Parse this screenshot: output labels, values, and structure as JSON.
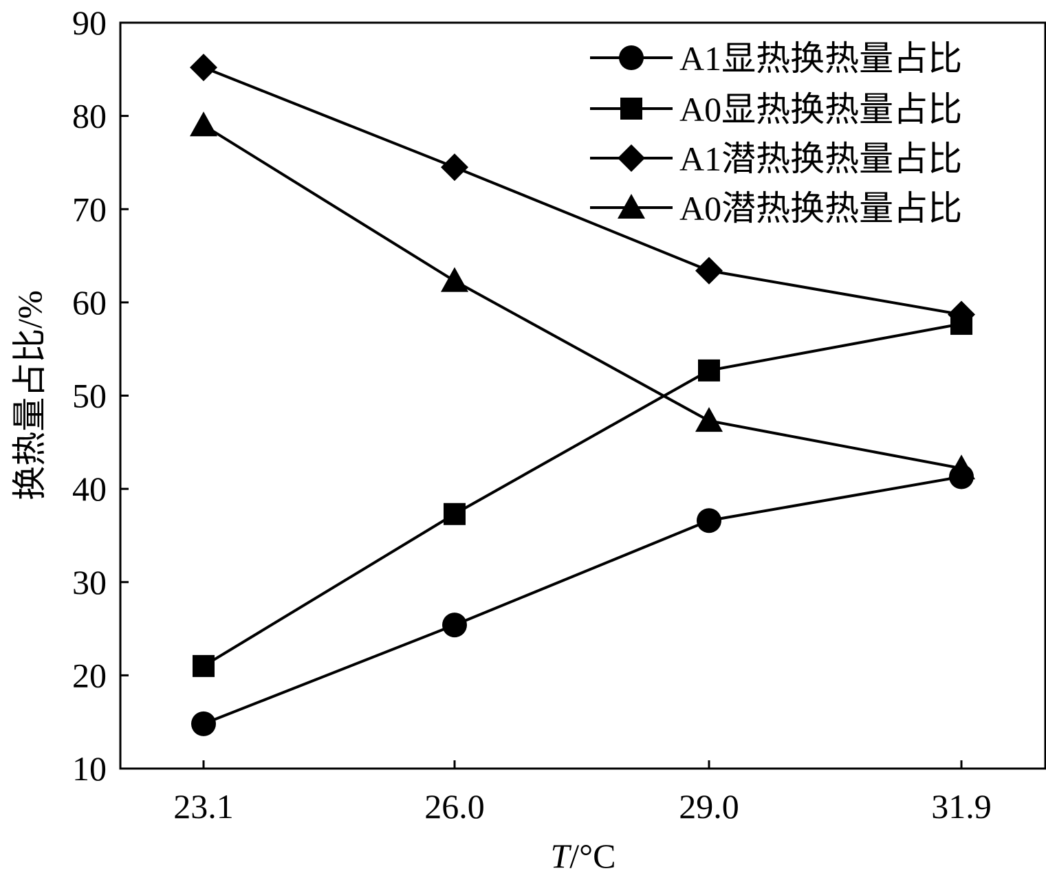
{
  "chart_data": {
    "type": "line",
    "categories": [
      "23.1",
      "26.0",
      "29.0",
      "31.9"
    ],
    "xlabel_italic": "T",
    "xlabel_unit": "/°C",
    "ylabel": "换热量占比/%",
    "ylim": [
      10,
      90
    ],
    "yticks": [
      "10",
      "20",
      "30",
      "40",
      "50",
      "60",
      "70",
      "80",
      "90"
    ],
    "grid": false,
    "legend_position": "top-right",
    "series": [
      {
        "name": "A1显热换热量占比",
        "marker": "circle",
        "values": [
          14.8,
          25.4,
          36.6,
          41.3
        ]
      },
      {
        "name": "A0显热换热量占比",
        "marker": "square",
        "values": [
          21.0,
          37.3,
          52.7,
          57.7
        ]
      },
      {
        "name": "A1潜热换热量占比",
        "marker": "diamond",
        "values": [
          85.2,
          74.5,
          63.4,
          58.7
        ]
      },
      {
        "name": "A0潜热换热量占比",
        "marker": "triangle",
        "values": [
          79.0,
          62.3,
          47.3,
          42.2
        ]
      }
    ]
  }
}
